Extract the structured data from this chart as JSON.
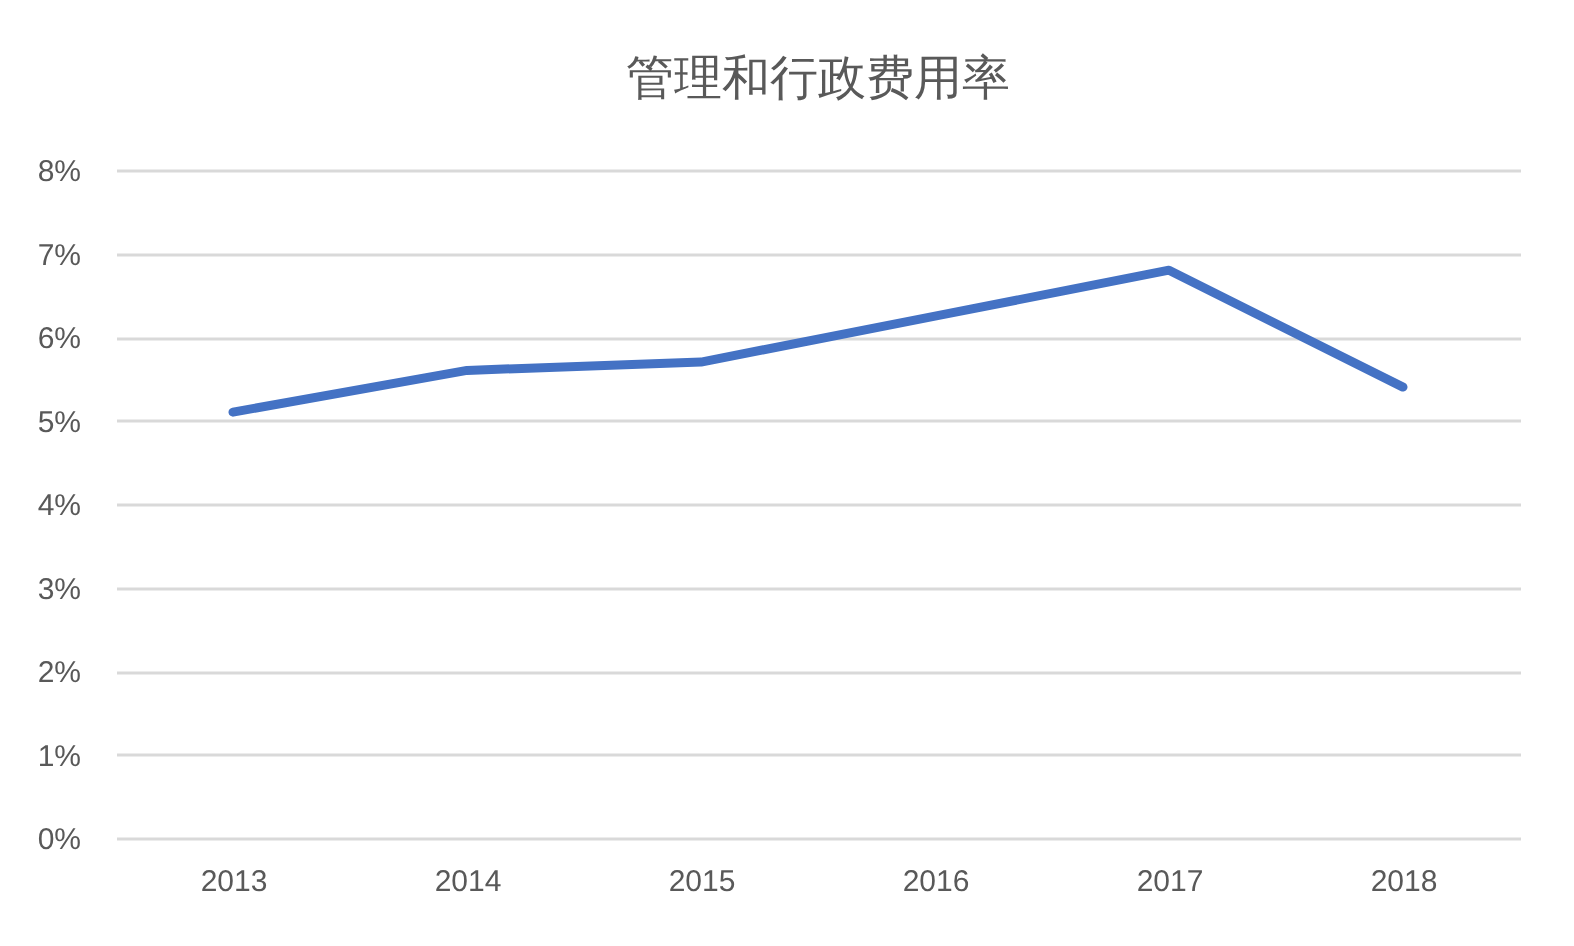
{
  "chart_data": {
    "type": "line",
    "title": "管理和行政费用率",
    "categories": [
      "2013",
      "2014",
      "2015",
      "2016",
      "2017",
      "2018"
    ],
    "series": [
      {
        "color": "#4472c4",
        "values": [
          5.1,
          5.6,
          5.7,
          6.25,
          6.8,
          5.4
        ]
      }
    ],
    "ylim": [
      0,
      8
    ],
    "yticks": [
      {
        "value": 0,
        "label": "0%"
      },
      {
        "value": 1,
        "label": "1%"
      },
      {
        "value": 2,
        "label": "2%"
      },
      {
        "value": 3,
        "label": "3%"
      },
      {
        "value": 4,
        "label": "4%"
      },
      {
        "value": 5,
        "label": "5%"
      },
      {
        "value": 6,
        "label": "6%"
      },
      {
        "value": 7,
        "label": "7%"
      },
      {
        "value": 8,
        "label": "8%"
      }
    ],
    "grid": "y",
    "legend": false,
    "marker": "none",
    "line_style": "solid"
  }
}
